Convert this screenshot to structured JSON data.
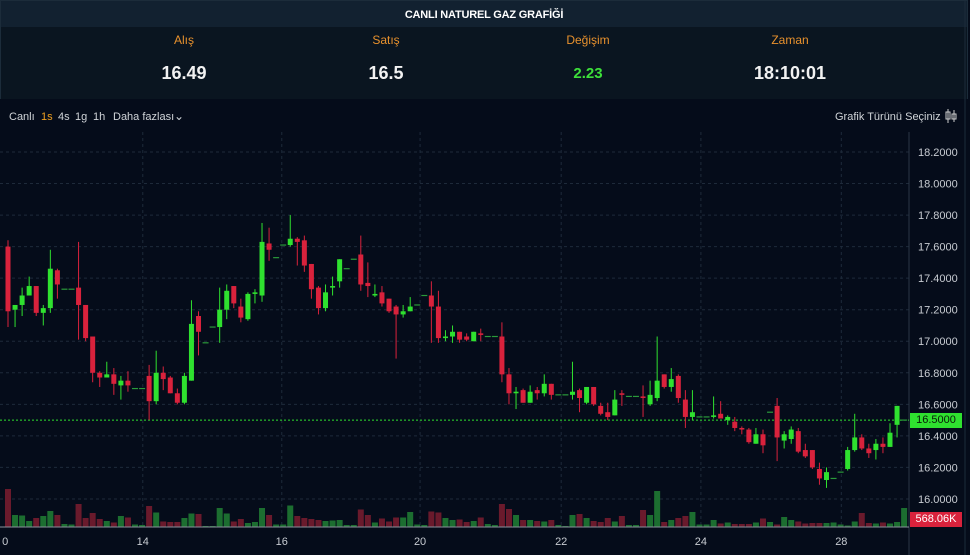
{
  "header": {
    "title": "CANLI NATUREL GAZ GRAFİĞİ"
  },
  "stats": [
    {
      "label": "Alış",
      "value": "16.49"
    },
    {
      "label": "Satış",
      "value": "16.5"
    },
    {
      "label": "Değişim",
      "value": "2.23"
    },
    {
      "label": "Zaman",
      "value": "18:10:01"
    }
  ],
  "toolbar": {
    "live": "Canlı",
    "intervals": [
      "1s",
      "4s",
      "1g",
      "1h"
    ],
    "active_interval": "1s",
    "more": "Daha fazlası",
    "chart_type": "Grafik Türünü Seçiniz"
  },
  "colors": {
    "up": "#2fe12f",
    "down": "#d9223c",
    "vol_up": "#1c6e30",
    "vol_down": "#6a1a2c",
    "accent": "#e8912d"
  },
  "chart_data": {
    "type": "candlestick",
    "price_ticks": [
      "18.2000",
      "18.0000",
      "17.8000",
      "17.6000",
      "17.4000",
      "17.2000",
      "17.0000",
      "16.8000",
      "16.6000",
      "16.4000",
      "16.2000",
      "16.0000"
    ],
    "ylim": [
      16.0,
      18.2
    ],
    "x_ticks": [
      {
        "label": "0",
        "index": -0.4
      },
      {
        "label": "14",
        "index": 19.1
      },
      {
        "label": "16",
        "index": 38.8
      },
      {
        "label": "20",
        "index": 58.4
      },
      {
        "label": "22",
        "index": 78.4
      },
      {
        "label": "24",
        "index": 98.2
      },
      {
        "label": "28",
        "index": 118.1
      }
    ],
    "current_price": 16.5,
    "current_price_label": "16.5000",
    "volume_label": "568.06K",
    "ohlc": [
      [
        17.6,
        17.64,
        17.09,
        17.19
      ],
      [
        17.2,
        17.23,
        17.09,
        17.23
      ],
      [
        17.23,
        17.34,
        17.16,
        17.29
      ],
      [
        17.29,
        17.41,
        17.29,
        17.35
      ],
      [
        17.35,
        17.35,
        17.16,
        17.18
      ],
      [
        17.18,
        17.23,
        17.1,
        17.21
      ],
      [
        17.21,
        17.58,
        17.18,
        17.46
      ],
      [
        17.45,
        17.46,
        17.27,
        17.36
      ],
      [
        17.33,
        17.33,
        17.33,
        17.33
      ],
      [
        17.33,
        17.33,
        17.33,
        17.33
      ],
      [
        17.34,
        17.63,
        17.01,
        17.23
      ],
      [
        17.23,
        17.23,
        17.0,
        17.02
      ],
      [
        17.03,
        17.03,
        16.74,
        16.8
      ],
      [
        16.8,
        16.81,
        16.71,
        16.77
      ],
      [
        16.77,
        16.87,
        16.77,
        16.79
      ],
      [
        16.79,
        16.83,
        16.66,
        16.73
      ],
      [
        16.72,
        16.78,
        16.63,
        16.75
      ],
      [
        16.75,
        16.81,
        16.68,
        16.72
      ],
      [
        16.7,
        16.7,
        16.7,
        16.7
      ],
      [
        16.7,
        16.7,
        16.7,
        16.7
      ],
      [
        16.78,
        16.85,
        16.5,
        16.62
      ],
      [
        16.62,
        16.94,
        16.6,
        16.8
      ],
      [
        16.8,
        16.84,
        16.69,
        16.76
      ],
      [
        16.77,
        16.78,
        16.67,
        16.67
      ],
      [
        16.67,
        16.7,
        16.6,
        16.61
      ],
      [
        16.61,
        16.8,
        16.6,
        16.78
      ],
      [
        16.75,
        17.26,
        16.75,
        17.11
      ],
      [
        17.16,
        17.19,
        16.91,
        17.06
      ],
      [
        16.99,
        16.99,
        16.99,
        16.99
      ],
      [
        17.09,
        17.09,
        17.09,
        17.09
      ],
      [
        17.09,
        17.34,
        16.99,
        17.2
      ],
      [
        17.2,
        17.36,
        17.14,
        17.32
      ],
      [
        17.35,
        17.35,
        17.21,
        17.24
      ],
      [
        17.22,
        17.27,
        17.12,
        17.15
      ],
      [
        17.14,
        17.31,
        17.13,
        17.3
      ],
      [
        17.3,
        17.33,
        17.24,
        17.31
      ],
      [
        17.29,
        17.75,
        17.25,
        17.63
      ],
      [
        17.62,
        17.72,
        17.51,
        17.58
      ],
      [
        17.53,
        17.53,
        17.53,
        17.53
      ],
      [
        17.61,
        17.61,
        17.61,
        17.61
      ],
      [
        17.61,
        17.8,
        17.6,
        17.65
      ],
      [
        17.65,
        17.66,
        17.48,
        17.63
      ],
      [
        17.64,
        17.67,
        17.44,
        17.48
      ],
      [
        17.49,
        17.49,
        17.27,
        17.33
      ],
      [
        17.34,
        17.35,
        17.17,
        17.21
      ],
      [
        17.21,
        17.36,
        17.19,
        17.31
      ],
      [
        17.34,
        17.41,
        17.29,
        17.35
      ],
      [
        17.38,
        17.52,
        17.34,
        17.52
      ],
      [
        17.46,
        17.46,
        17.46,
        17.46
      ],
      [
        17.52,
        17.52,
        17.52,
        17.52
      ],
      [
        17.55,
        17.67,
        17.32,
        17.36
      ],
      [
        17.37,
        17.5,
        17.28,
        17.35
      ],
      [
        17.29,
        17.36,
        17.28,
        17.3
      ],
      [
        17.31,
        17.35,
        17.22,
        17.24
      ],
      [
        17.27,
        17.27,
        17.18,
        17.19
      ],
      [
        17.22,
        17.23,
        16.89,
        17.17
      ],
      [
        17.17,
        17.23,
        17.15,
        17.19
      ],
      [
        17.19,
        17.28,
        17.19,
        17.22
      ],
      [
        17.23,
        17.23,
        17.23,
        17.23
      ],
      [
        17.29,
        17.29,
        17.29,
        17.29
      ],
      [
        17.29,
        17.38,
        16.99,
        17.22
      ],
      [
        17.22,
        17.32,
        16.99,
        17.02
      ],
      [
        17.02,
        17.07,
        17.0,
        17.03
      ],
      [
        17.03,
        17.1,
        16.99,
        17.06
      ],
      [
        17.06,
        17.06,
        16.99,
        17.01
      ],
      [
        17.03,
        17.05,
        17.0,
        17.01
      ],
      [
        17.0,
        17.06,
        17.0,
        17.06
      ],
      [
        17.05,
        17.08,
        17.0,
        17.04
      ],
      [
        17.03,
        17.03,
        17.03,
        17.03
      ],
      [
        17.03,
        17.03,
        17.03,
        17.03
      ],
      [
        17.03,
        17.12,
        16.74,
        16.79
      ],
      [
        16.79,
        16.83,
        16.6,
        16.67
      ],
      [
        16.67,
        16.71,
        16.57,
        16.68
      ],
      [
        16.69,
        16.7,
        16.61,
        16.61
      ],
      [
        16.61,
        16.72,
        16.61,
        16.68
      ],
      [
        16.69,
        16.71,
        16.63,
        16.67
      ],
      [
        16.67,
        16.79,
        16.65,
        16.73
      ],
      [
        16.73,
        16.73,
        16.63,
        16.66
      ],
      [
        16.66,
        16.66,
        16.66,
        16.66
      ],
      [
        16.66,
        16.66,
        16.66,
        16.66
      ],
      [
        16.66,
        16.87,
        16.63,
        16.68
      ],
      [
        16.69,
        16.7,
        16.55,
        16.64
      ],
      [
        16.61,
        16.71,
        16.6,
        16.71
      ],
      [
        16.71,
        16.71,
        16.59,
        16.6
      ],
      [
        16.59,
        16.61,
        16.53,
        16.54
      ],
      [
        16.55,
        16.61,
        16.5,
        16.52
      ],
      [
        16.53,
        16.69,
        16.53,
        16.63
      ],
      [
        16.67,
        16.69,
        16.59,
        16.66
      ],
      [
        16.65,
        16.65,
        16.65,
        16.65
      ],
      [
        16.65,
        16.65,
        16.65,
        16.65
      ],
      [
        16.65,
        16.72,
        16.52,
        16.64
      ],
      [
        16.6,
        16.75,
        16.59,
        16.66
      ],
      [
        16.64,
        17.03,
        16.62,
        16.75
      ],
      [
        16.79,
        16.79,
        16.7,
        16.71
      ],
      [
        16.71,
        16.83,
        16.68,
        16.76
      ],
      [
        16.78,
        16.79,
        16.61,
        16.64
      ],
      [
        16.63,
        16.69,
        16.45,
        16.52
      ],
      [
        16.52,
        16.69,
        16.5,
        16.55
      ],
      [
        16.52,
        16.52,
        16.52,
        16.52
      ],
      [
        16.52,
        16.52,
        16.52,
        16.52
      ],
      [
        16.52,
        16.65,
        16.51,
        16.53
      ],
      [
        16.54,
        16.62,
        16.51,
        16.51
      ],
      [
        16.5,
        16.53,
        16.47,
        16.52
      ],
      [
        16.49,
        16.52,
        16.43,
        16.45
      ],
      [
        16.45,
        16.46,
        16.41,
        16.44
      ],
      [
        16.44,
        16.45,
        16.35,
        16.36
      ],
      [
        16.35,
        16.45,
        16.35,
        16.41
      ],
      [
        16.41,
        16.44,
        16.29,
        16.34
      ],
      [
        16.55,
        16.55,
        16.55,
        16.55
      ],
      [
        16.59,
        16.64,
        16.24,
        16.39
      ],
      [
        16.37,
        16.43,
        16.32,
        16.41
      ],
      [
        16.38,
        16.46,
        16.35,
        16.44
      ],
      [
        16.43,
        16.45,
        16.29,
        16.3
      ],
      [
        16.31,
        16.35,
        16.26,
        16.27
      ],
      [
        16.31,
        16.31,
        16.19,
        16.2
      ],
      [
        16.19,
        16.23,
        16.09,
        16.13
      ],
      [
        16.12,
        16.2,
        16.07,
        16.17
      ],
      [
        16.13,
        16.13,
        16.13,
        16.13
      ],
      [
        16.17,
        16.17,
        16.17,
        16.17
      ],
      [
        16.19,
        16.33,
        16.18,
        16.31
      ],
      [
        16.31,
        16.54,
        16.3,
        16.39
      ],
      [
        16.39,
        16.41,
        16.31,
        16.32
      ],
      [
        16.32,
        16.35,
        16.26,
        16.29
      ],
      [
        16.31,
        16.38,
        16.25,
        16.35
      ],
      [
        16.35,
        16.39,
        16.29,
        16.33
      ],
      [
        16.33,
        16.48,
        16.33,
        16.42
      ],
      [
        16.47,
        16.59,
        16.39,
        16.59
      ],
      [
        16.5,
        16.5,
        16.5,
        16.5
      ]
    ],
    "volume_k": [
      380,
      120,
      115,
      60,
      90,
      110,
      160,
      120,
      30,
      25,
      230,
      90,
      140,
      80,
      60,
      45,
      110,
      95,
      25,
      20,
      210,
      145,
      55,
      50,
      50,
      90,
      135,
      130,
      10,
      10,
      190,
      135,
      55,
      80,
      40,
      50,
      190,
      120,
      25,
      25,
      215,
      110,
      90,
      80,
      70,
      60,
      65,
      70,
      20,
      20,
      175,
      120,
      45,
      85,
      55,
      95,
      95,
      150,
      25,
      20,
      155,
      145,
      90,
      70,
      75,
      50,
      60,
      95,
      30,
      20,
      230,
      180,
      120,
      70,
      70,
      60,
      55,
      70,
      20,
      10,
      120,
      130,
      90,
      60,
      50,
      90,
      55,
      110,
      20,
      20,
      170,
      120,
      360,
      50,
      70,
      90,
      110,
      150,
      25,
      25,
      70,
      35,
      45,
      30,
      30,
      30,
      45,
      85,
      50,
      25,
      100,
      70,
      55,
      35,
      40,
      40,
      40,
      45,
      25,
      15,
      55,
      140,
      40,
      35,
      45,
      35,
      50,
      190
    ]
  }
}
